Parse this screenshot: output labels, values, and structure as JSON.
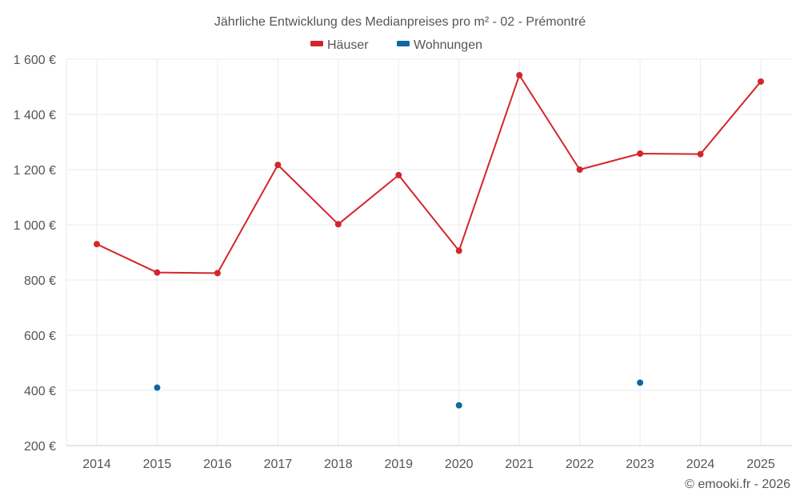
{
  "chart_data": {
    "type": "line",
    "title": "Jährliche Entwicklung des Medianpreises pro m² - 02 - Prémontré",
    "categories": [
      "2014",
      "2015",
      "2016",
      "2017",
      "2018",
      "2019",
      "2020",
      "2021",
      "2022",
      "2023",
      "2024",
      "2025"
    ],
    "series": [
      {
        "name": "Häuser",
        "color": "#d3262c",
        "values": [
          930,
          827,
          825,
          1217,
          1002,
          1180,
          906,
          1542,
          1200,
          1258,
          1256,
          1519
        ],
        "connected": true
      },
      {
        "name": "Wohnungen",
        "color": "#0f68a3",
        "values": [
          null,
          410,
          null,
          null,
          null,
          null,
          346,
          null,
          null,
          428,
          null,
          null
        ],
        "connected": false
      }
    ],
    "y_ticks": [
      "200 €",
      "400 €",
      "600 €",
      "800 €",
      "1 000 €",
      "1 200 €",
      "1 400 €",
      "1 600 €"
    ],
    "ylim": [
      200,
      1600
    ],
    "xlabel": "",
    "ylabel": "",
    "legend_position": "top-center"
  },
  "footer": {
    "copyright": "© emooki.fr - 2026"
  }
}
